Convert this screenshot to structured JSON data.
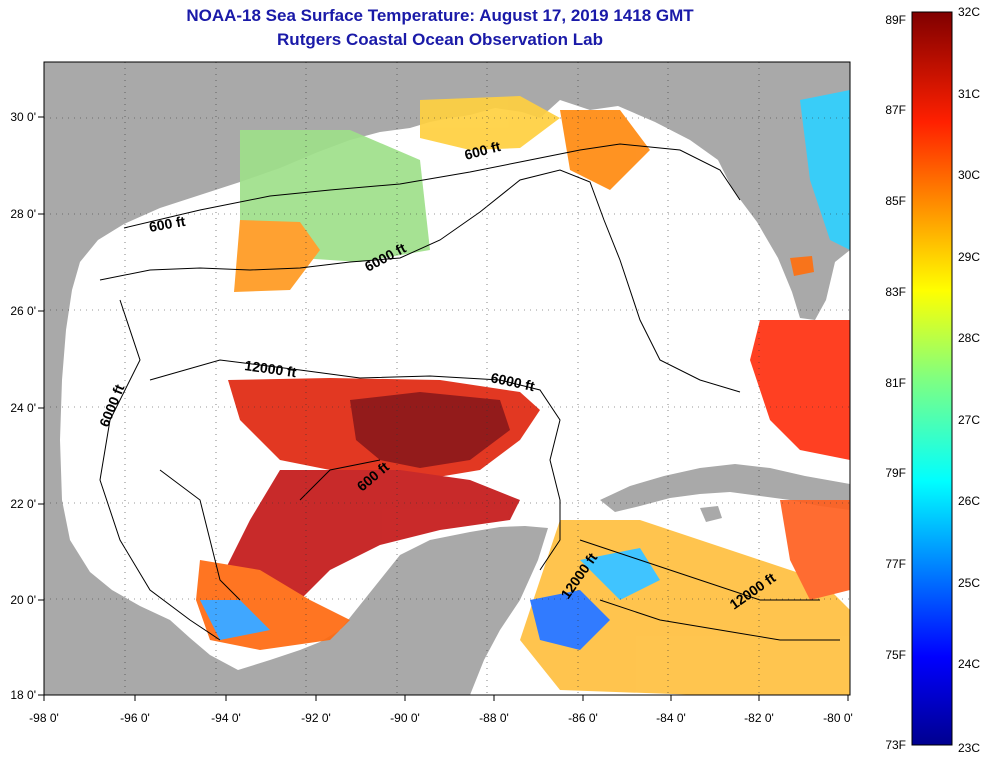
{
  "header": {
    "title": "NOAA-18 Sea Surface Temperature:  August 17, 2019 1418 GMT",
    "subtitle": "Rutgers Coastal Ocean Observation Lab"
  },
  "map": {
    "lon_ticks": [
      "-98 0'",
      "-96 0'",
      "-94 0'",
      "-92 0'",
      "-90 0'",
      "-88 0'",
      "-86 0'",
      "-84 0'",
      "-82 0'",
      "-80 0'"
    ],
    "lat_ticks": [
      "30 0'",
      "28 0'",
      "26 0'",
      "24 0'",
      "22 0'",
      "20 0'",
      "18 0'"
    ],
    "contour_labels": [
      "600 ft",
      "600 ft",
      "6000 ft",
      "6000 ft",
      "12000 ft",
      "6000 ft",
      "600 ft",
      "12000 ft",
      "12000 ft"
    ],
    "colors": {
      "land": "#a9a9a9",
      "water_no_data": "#ffffff"
    }
  },
  "colorbar": {
    "fahrenheit_labels": [
      "89F",
      "87F",
      "85F",
      "83F",
      "81F",
      "79F",
      "77F",
      "75F",
      "73F"
    ],
    "celsius_labels": [
      "32C",
      "31C",
      "30C",
      "29C",
      "28C",
      "27C",
      "26C",
      "25C",
      "24C",
      "23C"
    ],
    "range_c": [
      23,
      32
    ]
  }
}
